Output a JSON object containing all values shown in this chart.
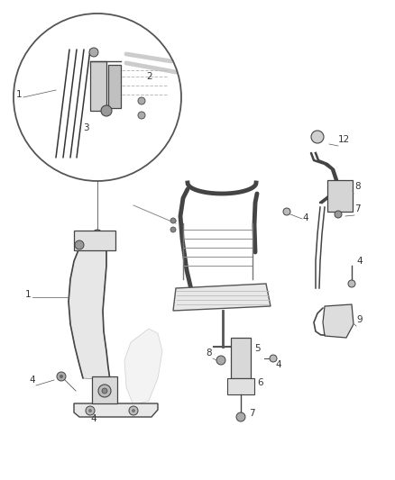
{
  "bg_color": "#ffffff",
  "line_color": "#555555",
  "fig_width": 4.38,
  "fig_height": 5.33,
  "dpi": 100,
  "font_size": 7.5,
  "annotation_color": "#333333"
}
